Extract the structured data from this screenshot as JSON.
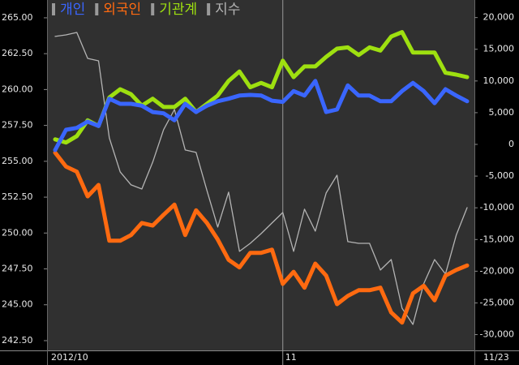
{
  "chart_data": {
    "type": "line",
    "categories": [
      "2012/10",
      null,
      null,
      null,
      null,
      null,
      null,
      null,
      null,
      null,
      null,
      null,
      null,
      null,
      null,
      null,
      null,
      null,
      null,
      null,
      null,
      "11",
      null,
      null,
      null,
      null,
      null,
      null,
      null,
      null,
      null,
      null,
      null,
      null,
      null,
      null,
      null,
      null,
      "11/23"
    ],
    "series": [
      {
        "name": "개인",
        "color": "#3a66ff",
        "axis": "y2",
        "values": [
          -900,
          2300,
          2600,
          3600,
          2900,
          7200,
          6400,
          6400,
          6100,
          5100,
          4900,
          3800,
          6400,
          5100,
          6100,
          6800,
          7200,
          7700,
          7800,
          7700,
          6900,
          6700,
          8400,
          7700,
          10000,
          5100,
          5500,
          9300,
          7700,
          7700,
          6800,
          6800,
          8400,
          9700,
          8400,
          6500,
          8700,
          7700,
          6800
        ]
      },
      {
        "name": "외국인",
        "color": "#ff6a10",
        "axis": "y2",
        "values": [
          -1300,
          -3500,
          -4300,
          -8200,
          -6400,
          -15200,
          -15200,
          -14300,
          -12400,
          -12800,
          -11100,
          -9500,
          -14300,
          -10400,
          -12400,
          -15000,
          -18200,
          -19400,
          -17100,
          -17100,
          -16600,
          -22000,
          -20100,
          -22600,
          -18800,
          -20700,
          -25200,
          -23900,
          -23000,
          -23000,
          -22600,
          -26500,
          -28100,
          -23500,
          -22300,
          -24600,
          -20700,
          -19800,
          -19100
        ]
      },
      {
        "name": "기관계",
        "color": "#9ee010",
        "axis": "y2",
        "values": [
          800,
          300,
          1300,
          3800,
          2900,
          7400,
          8700,
          7900,
          6100,
          7200,
          5900,
          5900,
          7200,
          5100,
          6400,
          7700,
          10000,
          11500,
          9000,
          9700,
          9000,
          13200,
          10600,
          12300,
          12300,
          13800,
          15100,
          15300,
          14100,
          15300,
          14800,
          17000,
          17700,
          14500,
          14500,
          14500,
          11300,
          11000,
          10600
        ]
      },
      {
        "name": "지수",
        "color": "#b4b4b4",
        "values": [
          263.7,
          263.81,
          263.98,
          262.17,
          262.0,
          256.63,
          254.26,
          253.36,
          253.07,
          254.94,
          257.2,
          258.61,
          255.79,
          255.62,
          252.96,
          250.42,
          252.85,
          248.72,
          249.28,
          249.96,
          250.7,
          251.43,
          248.72,
          251.66,
          250.13,
          252.79,
          254.03,
          249.4,
          249.28,
          249.28,
          247.42,
          248.15,
          244.76,
          243.63,
          246.46,
          248.15,
          247.14,
          249.85,
          251.77
        ]
      }
    ],
    "ylim": [
      241.82,
      266.24
    ],
    "yticks": [
      {
        "value": 242.5,
        "label": "242.50"
      },
      {
        "value": 245,
        "label": "245.00"
      },
      {
        "value": 247.5,
        "label": "247.50"
      },
      {
        "value": 250,
        "label": "250.00"
      },
      {
        "value": 252.5,
        "label": "252.50"
      },
      {
        "value": 255,
        "label": "255.00"
      },
      {
        "value": 257.5,
        "label": "257.50"
      },
      {
        "value": 260,
        "label": "260.00"
      },
      {
        "value": 262.5,
        "label": "262.50"
      },
      {
        "value": 265,
        "label": "265.00"
      }
    ],
    "y2lim": [
      -32490,
      22770
    ],
    "y2ticks": [
      {
        "value": -30000,
        "label": "-30,000"
      },
      {
        "value": -25000,
        "label": "-25,000"
      },
      {
        "value": -20000,
        "label": "-20,000"
      },
      {
        "value": -15000,
        "label": "-15,000"
      },
      {
        "value": -10000,
        "label": "-10,000"
      },
      {
        "value": -5000,
        "label": "-5,000"
      },
      0,
      {
        "value": 5000,
        "label": "5,000"
      },
      {
        "value": 10000,
        "label": "10,000"
      },
      {
        "value": 15000,
        "label": "15,000"
      },
      {
        "value": 20000,
        "label": "20,000"
      }
    ]
  }
}
